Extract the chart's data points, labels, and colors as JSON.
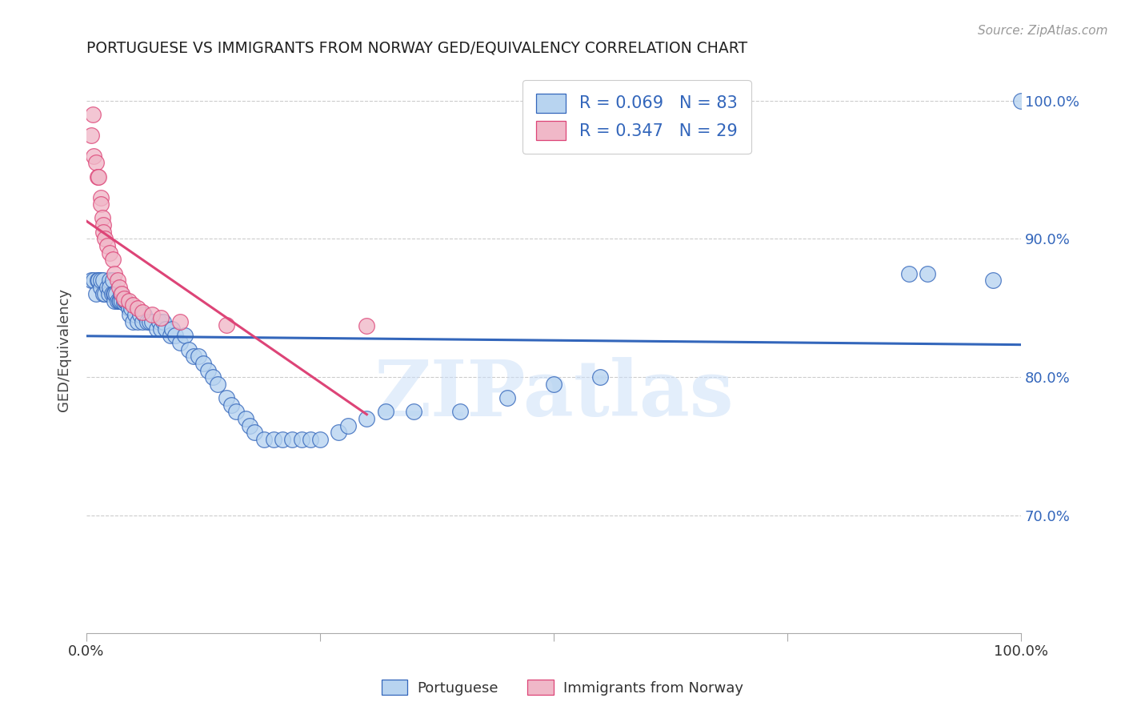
{
  "title": "PORTUGUESE VS IMMIGRANTS FROM NORWAY GED/EQUIVALENCY CORRELATION CHART",
  "source": "Source: ZipAtlas.com",
  "ylabel": "GED/Equivalency",
  "xlim": [
    0.0,
    1.0
  ],
  "ylim": [
    0.615,
    1.025
  ],
  "yticks": [
    0.7,
    0.8,
    0.9,
    1.0
  ],
  "ytick_labels": [
    "70.0%",
    "80.0%",
    "90.0%",
    "100.0%"
  ],
  "legend_blue_label": "R = 0.069   N = 83",
  "legend_pink_label": "R = 0.347   N = 29",
  "blue_color": "#b8d4f0",
  "blue_line_color": "#3366bb",
  "pink_color": "#f0b8c8",
  "pink_line_color": "#dd4477",
  "watermark": "ZIPatlas",
  "blue_x": [
    0.005,
    0.008,
    0.01,
    0.012,
    0.013,
    0.015,
    0.015,
    0.018,
    0.018,
    0.02,
    0.022,
    0.024,
    0.025,
    0.025,
    0.027,
    0.028,
    0.029,
    0.03,
    0.03,
    0.032,
    0.033,
    0.035,
    0.036,
    0.037,
    0.038,
    0.04,
    0.041,
    0.042,
    0.045,
    0.046,
    0.048,
    0.05,
    0.052,
    0.055,
    0.057,
    0.06,
    0.062,
    0.065,
    0.068,
    0.07,
    0.075,
    0.078,
    0.08,
    0.082,
    0.085,
    0.09,
    0.092,
    0.095,
    0.1,
    0.105,
    0.11,
    0.115,
    0.12,
    0.125,
    0.13,
    0.135,
    0.14,
    0.15,
    0.155,
    0.16,
    0.17,
    0.175,
    0.18,
    0.19,
    0.2,
    0.21,
    0.22,
    0.23,
    0.24,
    0.25,
    0.27,
    0.28,
    0.3,
    0.32,
    0.35,
    0.4,
    0.45,
    0.5,
    0.55,
    0.88,
    0.9,
    0.97,
    1.0
  ],
  "blue_y": [
    0.87,
    0.87,
    0.86,
    0.87,
    0.87,
    0.865,
    0.87,
    0.86,
    0.87,
    0.86,
    0.865,
    0.86,
    0.87,
    0.865,
    0.86,
    0.87,
    0.86,
    0.855,
    0.86,
    0.86,
    0.855,
    0.855,
    0.855,
    0.86,
    0.855,
    0.854,
    0.855,
    0.855,
    0.85,
    0.845,
    0.85,
    0.84,
    0.845,
    0.84,
    0.845,
    0.84,
    0.845,
    0.84,
    0.84,
    0.84,
    0.835,
    0.84,
    0.835,
    0.84,
    0.835,
    0.83,
    0.835,
    0.83,
    0.825,
    0.83,
    0.82,
    0.815,
    0.815,
    0.81,
    0.805,
    0.8,
    0.795,
    0.785,
    0.78,
    0.775,
    0.77,
    0.765,
    0.76,
    0.755,
    0.755,
    0.755,
    0.755,
    0.755,
    0.755,
    0.755,
    0.76,
    0.765,
    0.77,
    0.775,
    0.775,
    0.775,
    0.785,
    0.795,
    0.8,
    0.875,
    0.875,
    0.87,
    1.0
  ],
  "pink_x": [
    0.005,
    0.007,
    0.008,
    0.01,
    0.012,
    0.013,
    0.015,
    0.015,
    0.017,
    0.018,
    0.018,
    0.02,
    0.022,
    0.025,
    0.028,
    0.03,
    0.033,
    0.035,
    0.038,
    0.04,
    0.045,
    0.05,
    0.055,
    0.06,
    0.07,
    0.08,
    0.1,
    0.15,
    0.3
  ],
  "pink_y": [
    0.975,
    0.99,
    0.96,
    0.955,
    0.945,
    0.945,
    0.93,
    0.925,
    0.915,
    0.91,
    0.905,
    0.9,
    0.895,
    0.89,
    0.885,
    0.875,
    0.87,
    0.865,
    0.86,
    0.857,
    0.855,
    0.852,
    0.85,
    0.847,
    0.845,
    0.843,
    0.84,
    0.838,
    0.837
  ]
}
